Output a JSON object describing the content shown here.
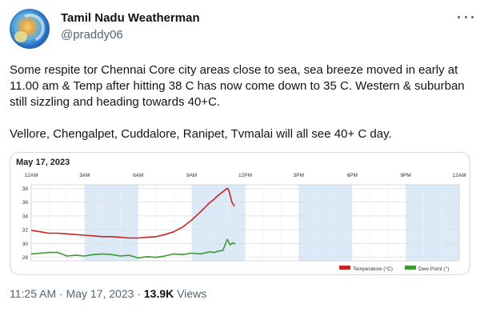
{
  "author": {
    "display_name": "Tamil Nadu Weatherman",
    "handle": "@praddy06"
  },
  "tweet": {
    "paragraph_1": "Some respite tor Chennai Core city areas close to sea, sea breeze moved in early at 11.00 am & Temp after hitting 38 C has now come down to 35 C. Western & suburban still sizzling and heading towards 40+C.",
    "paragraph_2": "Vellore, Chengalpet, Cuddalore, Ranipet, Tvmalai will all see 40+ C day."
  },
  "meta": {
    "time": "11:25 AM",
    "separator_1": "·",
    "date": "May 17, 2023",
    "separator_2": "·",
    "views_count": "13.9K",
    "views_label": "Views"
  },
  "icons": {
    "more": "more-dots-icon"
  },
  "colors": {
    "temperature": "#cc2222",
    "dew_point": "#3a9a2e",
    "night_band": "#dce9f7"
  },
  "chart_data": {
    "type": "line",
    "title": "May 17, 2023",
    "x_ticks": [
      "12AM",
      "3AM",
      "6AM",
      "9AM",
      "12PM",
      "3PM",
      "6PM",
      "9PM",
      "12AM"
    ],
    "x_range_hours": [
      0,
      24
    ],
    "y_ticks": [
      28,
      30,
      32,
      34,
      36,
      38
    ],
    "ylim": [
      27.5,
      38.5
    ],
    "grid": true,
    "legend": [
      {
        "label": "Temperature (°C)",
        "series": "temperature"
      },
      {
        "label": "Dew Point (°)",
        "series": "dew_point"
      }
    ],
    "legend_placement": "bottom-right",
    "series": [
      {
        "name": "Temperature (°C)",
        "key": "temperature",
        "x": [
          0,
          0.5,
          1,
          1.5,
          2,
          2.5,
          3,
          3.5,
          4,
          4.5,
          5,
          5.5,
          6,
          6.5,
          7,
          7.5,
          8,
          8.5,
          9,
          9.5,
          10,
          10.25,
          10.5,
          10.75,
          11,
          11.1,
          11.25,
          11.4
        ],
        "y": [
          31.9,
          31.7,
          31.5,
          31.5,
          31.4,
          31.3,
          31.2,
          31.1,
          31.0,
          31.0,
          30.9,
          30.8,
          30.8,
          30.9,
          31.0,
          31.3,
          31.7,
          32.4,
          33.4,
          34.6,
          35.9,
          36.4,
          37.0,
          37.5,
          38.0,
          37.6,
          36.0,
          35.4
        ]
      },
      {
        "name": "Dew Point (°)",
        "key": "dew_point",
        "x": [
          0,
          0.5,
          1,
          1.5,
          2,
          2.5,
          3,
          3.5,
          4,
          4.5,
          5,
          5.5,
          6,
          6.5,
          7,
          7.5,
          8,
          8.5,
          9,
          9.5,
          10,
          10.25,
          10.5,
          10.75,
          11,
          11.15,
          11.3,
          11.45
        ],
        "y": [
          28.5,
          28.6,
          28.7,
          28.7,
          28.2,
          28.3,
          28.2,
          28.4,
          28.5,
          28.4,
          28.2,
          28.3,
          27.9,
          28.1,
          28.0,
          28.2,
          28.5,
          28.4,
          28.6,
          28.5,
          28.8,
          28.7,
          28.9,
          29.0,
          30.6,
          29.8,
          30.1,
          29.9
        ]
      }
    ]
  }
}
